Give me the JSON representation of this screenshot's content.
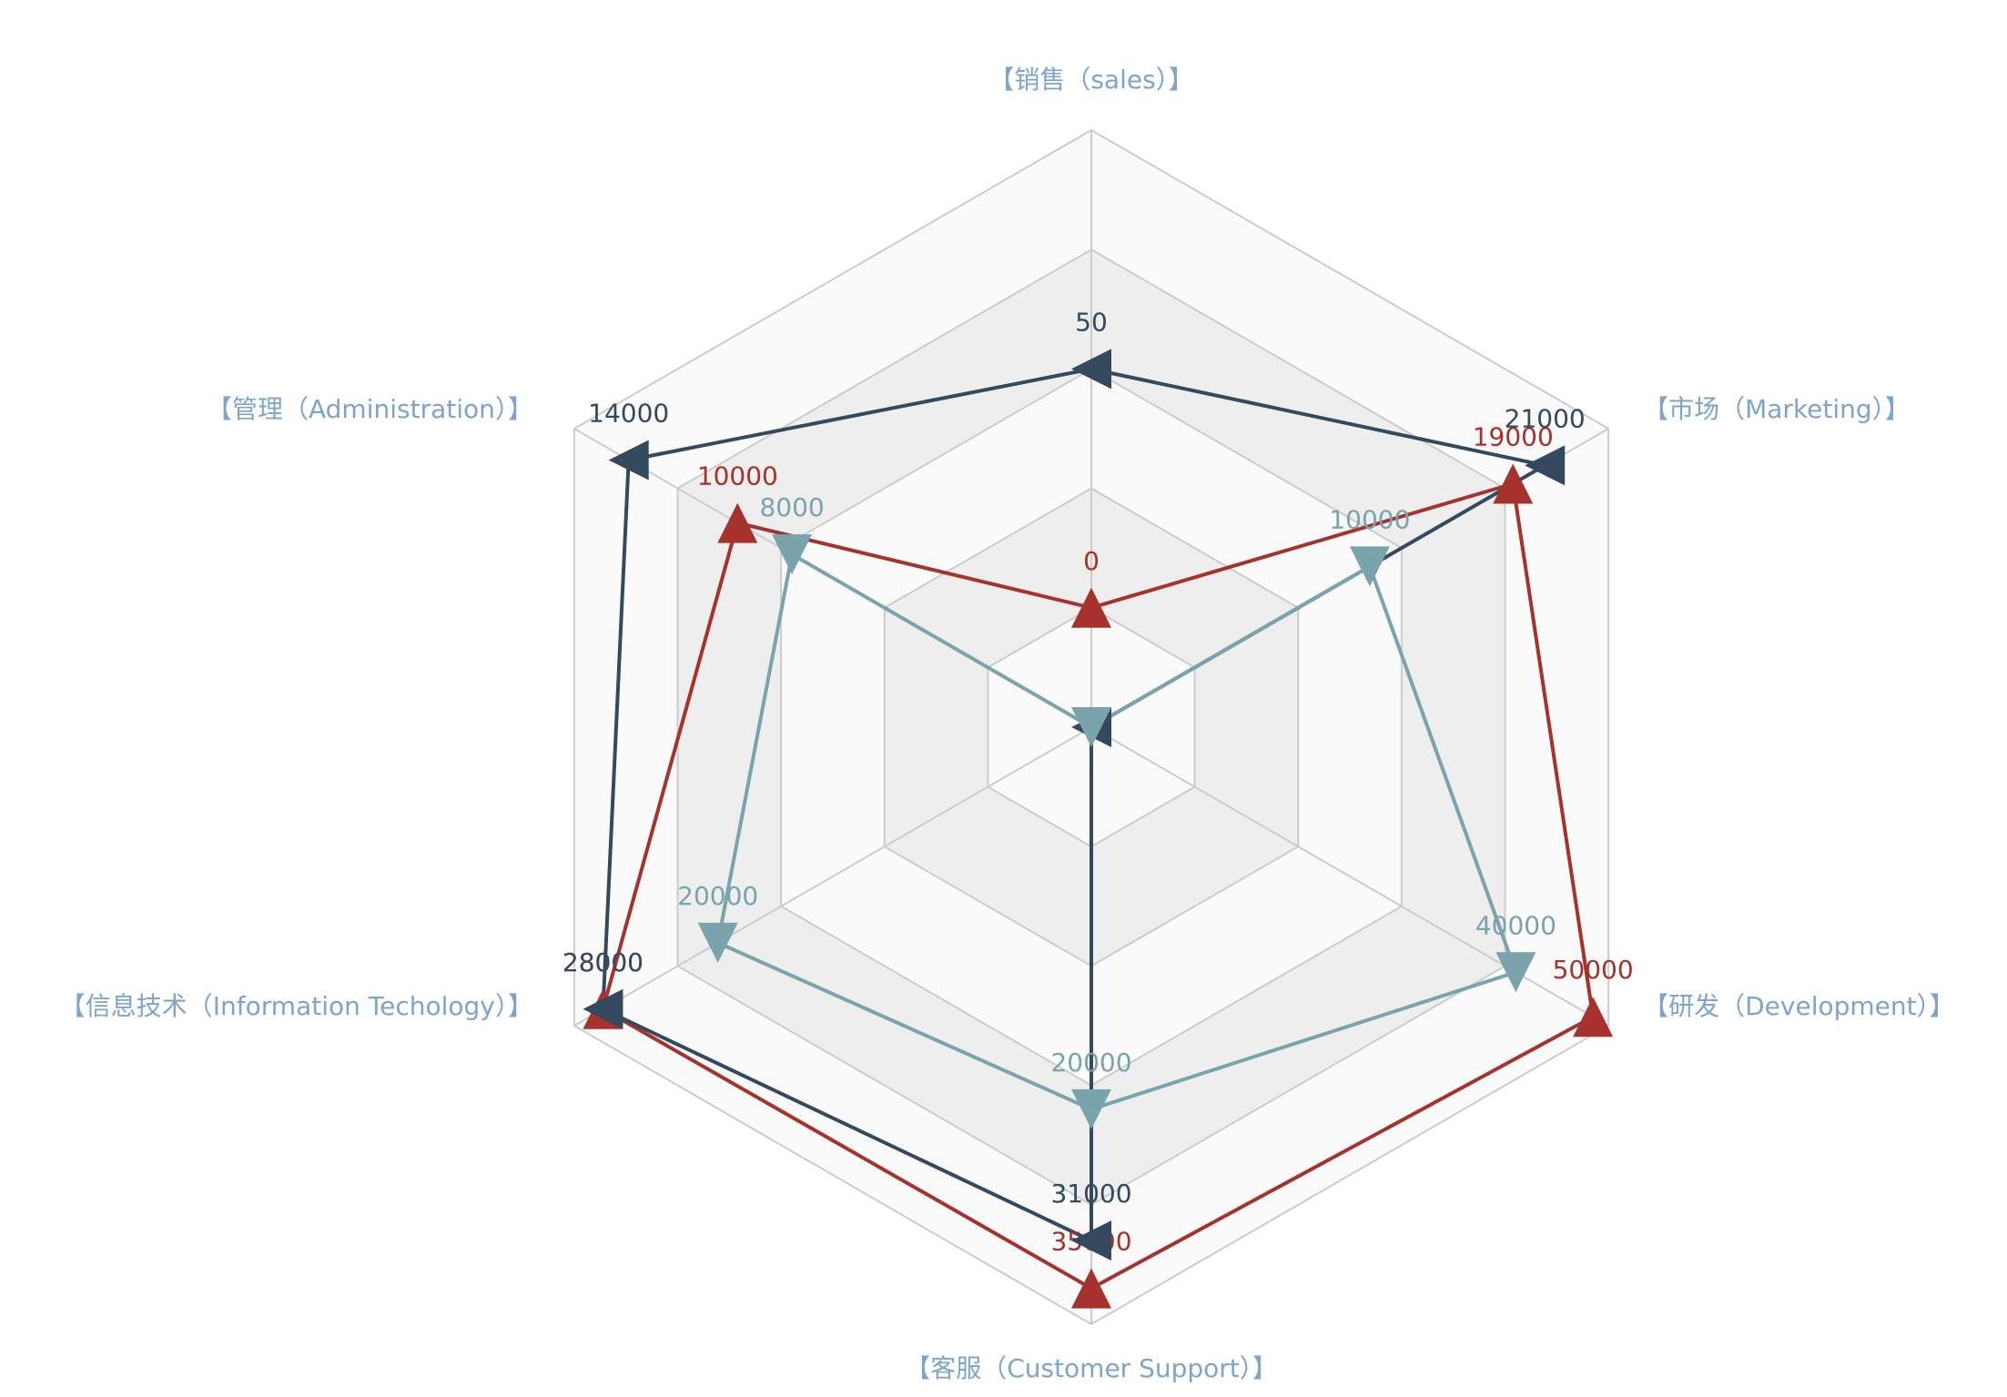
{
  "chart_data": {
    "type": "radar",
    "indicators": [
      {
        "name": "【销售（sales）】",
        "lim": [
          -25,
          100
        ]
      },
      {
        "name": "【管理（Administration）】",
        "lim": [
          -3000,
          16000
        ]
      },
      {
        "name": "【信息技术（Information Techology）】",
        "lim": [
          -6000,
          30000
        ]
      },
      {
        "name": "【客服（Customer Support）】",
        "lim": [
          -12000,
          38000
        ]
      },
      {
        "name": "【研发（Development）】",
        "lim": [
          -15000,
          52000
        ]
      },
      {
        "name": "【市场（Marketing）】",
        "lim": [
          -7500,
          25000
        ]
      }
    ],
    "series": [
      {
        "color": "#a5322c",
        "marker": "up",
        "values": [
          0,
          10000,
          28000,
          35000,
          50000,
          19000
        ],
        "label_hidden": []
      },
      {
        "color": "#34495e",
        "marker": "left",
        "values": [
          50,
          14000,
          28000,
          31000,
          -15000,
          21000
        ],
        "label_hidden": [
          4
        ]
      },
      {
        "color": "#7aa3ab",
        "marker": "down",
        "values": [
          -25,
          8000,
          20000,
          20000,
          40000,
          10000
        ],
        "label_hidden": [
          0
        ]
      }
    ],
    "split_number": 5,
    "split_colors": [
      "#fafafa",
      "#eeeeee"
    ],
    "axis_name_color": "#7ea3cc"
  }
}
